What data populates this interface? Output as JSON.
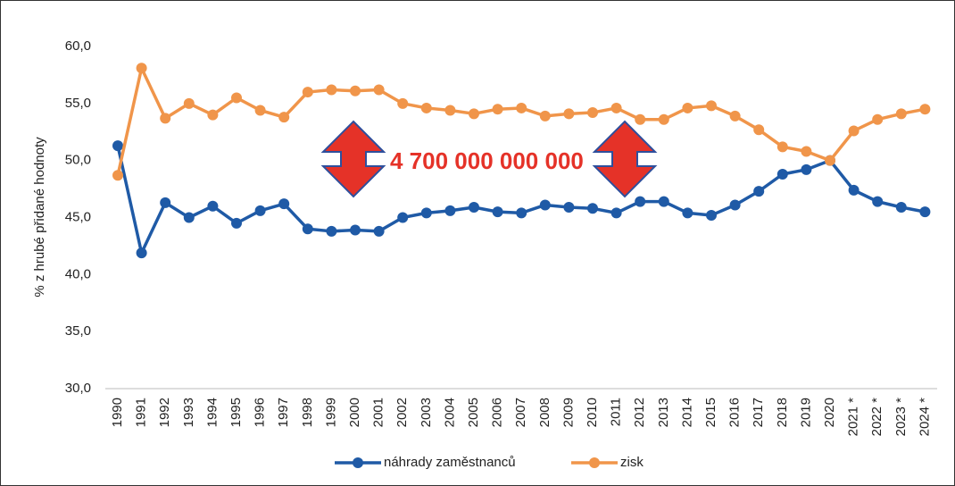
{
  "chart_data": {
    "type": "line",
    "y_label": "% z hrubé přidané hodnoty",
    "annotation": "4 700 000 000 000",
    "categories": [
      "1990",
      "1991",
      "1992",
      "1993",
      "1994",
      "1995",
      "1996",
      "1997",
      "1998",
      "1999",
      "2000",
      "2001",
      "2002",
      "2003",
      "2004",
      "2005",
      "2006",
      "2007",
      "2008",
      "2009",
      "2010",
      "2011",
      "2012",
      "2013",
      "2014",
      "2015",
      "2016",
      "2017",
      "2018",
      "2019",
      "2020",
      "2021 *",
      "2022 *",
      "2023 *",
      "2024 *"
    ],
    "series": [
      {
        "name": "náhrady zaměstnanců",
        "color": "#1f5aa6",
        "values": [
          51.3,
          41.9,
          46.3,
          45.0,
          46.0,
          44.5,
          45.6,
          46.2,
          44.0,
          43.8,
          43.9,
          43.8,
          45.0,
          45.4,
          45.6,
          45.9,
          45.5,
          45.4,
          46.1,
          45.9,
          45.8,
          45.4,
          46.4,
          46.4,
          45.4,
          45.2,
          46.1,
          47.3,
          48.8,
          49.2,
          50.0,
          47.4,
          46.4,
          45.9,
          45.5
        ]
      },
      {
        "name": "zisk",
        "color": "#f0954a",
        "values": [
          48.7,
          58.1,
          53.7,
          55.0,
          54.0,
          55.5,
          54.4,
          53.8,
          56.0,
          56.2,
          56.1,
          56.2,
          55.0,
          54.6,
          54.4,
          54.1,
          54.5,
          54.6,
          53.9,
          54.1,
          54.2,
          54.6,
          53.6,
          53.6,
          54.6,
          54.8,
          53.9,
          52.7,
          51.2,
          50.8,
          50.0,
          52.6,
          53.6,
          54.1,
          54.5
        ]
      }
    ],
    "ylim": [
      30,
      60
    ],
    "yticks": [
      {
        "value": 30,
        "label": "30,0"
      },
      {
        "value": 35,
        "label": "35,0"
      },
      {
        "value": 40,
        "label": "40,0"
      },
      {
        "value": 45,
        "label": "45,0"
      },
      {
        "value": 50,
        "label": "50,0"
      },
      {
        "value": 55,
        "label": "55,0"
      },
      {
        "value": 60,
        "label": "60,0"
      }
    ],
    "grid": false,
    "legend": "bottom"
  }
}
